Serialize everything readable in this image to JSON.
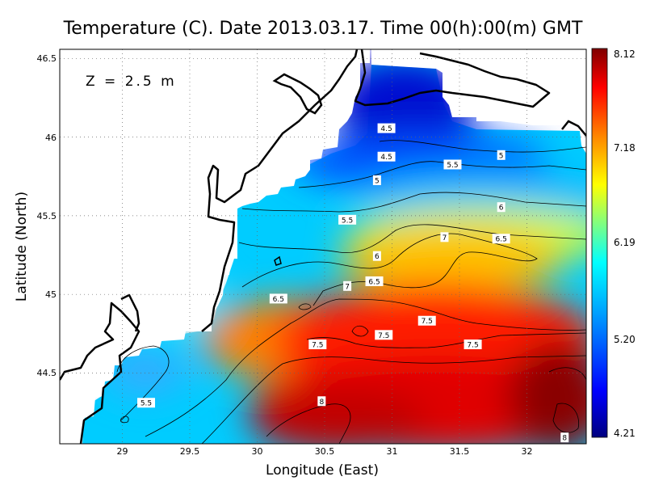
{
  "chart_data": {
    "type": "heatmap",
    "title": "Temperature (C). Date 2013.03.17. Time 00(h):00(m) GMT",
    "depth_label": "Z = 2.5 m",
    "xlabel": "Longitude (East)",
    "ylabel": "Latitude (North)",
    "xlim": [
      28.55,
      32.45
    ],
    "ylim": [
      44.05,
      46.55
    ],
    "x_ticks": [
      "29",
      "29.5",
      "30",
      "30.5",
      "31",
      "31.5",
      "32"
    ],
    "y_ticks": [
      "44.5",
      "45",
      "45.5",
      "46",
      "46.5"
    ],
    "grid": true,
    "colorbar": {
      "min": 4.21,
      "max": 8.12,
      "ticks": [
        "8.12",
        "7.18",
        "6.19",
        "5.20",
        "4.21"
      ],
      "colors": [
        "#00007f",
        "#0000ff",
        "#0080ff",
        "#00ffff",
        "#80ff80",
        "#ffff00",
        "#ff8000",
        "#ff0000",
        "#7f0000"
      ]
    },
    "contour_labels": [
      {
        "text": "4.5",
        "lon": 30.97,
        "lat": 46.05
      },
      {
        "text": "4.5",
        "lon": 30.97,
        "lat": 45.87
      },
      {
        "text": "5",
        "lon": 30.9,
        "lat": 45.72
      },
      {
        "text": "5",
        "lon": 31.82,
        "lat": 45.88
      },
      {
        "text": "5.5",
        "lon": 31.46,
        "lat": 45.82
      },
      {
        "text": "5.5",
        "lon": 30.68,
        "lat": 45.47
      },
      {
        "text": "5.5",
        "lon": 29.19,
        "lat": 44.31
      },
      {
        "text": "6",
        "lon": 31.82,
        "lat": 45.55
      },
      {
        "text": "6",
        "lon": 30.9,
        "lat": 45.24
      },
      {
        "text": "6.5",
        "lon": 31.82,
        "lat": 45.35
      },
      {
        "text": "6.5",
        "lon": 30.88,
        "lat": 45.08
      },
      {
        "text": "6.5",
        "lon": 30.17,
        "lat": 44.97
      },
      {
        "text": "7",
        "lon": 31.4,
        "lat": 45.36
      },
      {
        "text": "7",
        "lon": 30.68,
        "lat": 45.05
      },
      {
        "text": "7.5",
        "lon": 31.27,
        "lat": 44.83
      },
      {
        "text": "7.5",
        "lon": 30.95,
        "lat": 44.74
      },
      {
        "text": "7.5",
        "lon": 30.46,
        "lat": 44.68
      },
      {
        "text": "7.5",
        "lon": 31.61,
        "lat": 44.68
      },
      {
        "text": "8",
        "lon": 30.49,
        "lat": 44.32
      },
      {
        "text": "8",
        "lon": 32.29,
        "lat": 44.09
      }
    ]
  }
}
